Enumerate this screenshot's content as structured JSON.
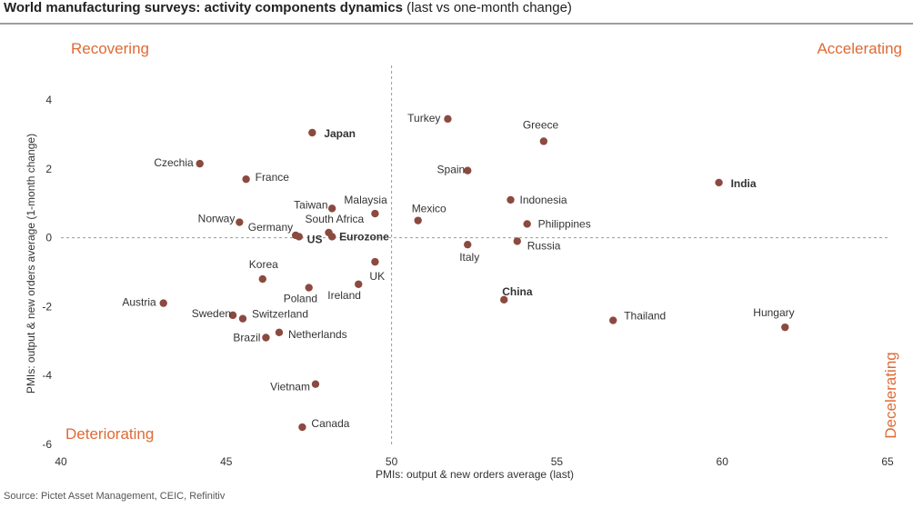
{
  "header": {
    "title_bold": "World manufacturing surveys: activity components dynamics",
    "title_rest": " (last vs one-month change)"
  },
  "footer": {
    "source": "Source: Pictet Asset Management, CEIC, Refinitiv"
  },
  "chart_data": {
    "type": "scatter",
    "title": "World manufacturing surveys: activity components dynamics (last vs one-month change)",
    "xlabel": "PMIs: output & new orders average (last)",
    "ylabel": "PMIs: output & new orders average (1-month change)",
    "xlim": [
      40,
      65
    ],
    "ylim": [
      -6,
      4.8
    ],
    "xticks": [
      "40",
      "45",
      "50",
      "55",
      "60",
      "65"
    ],
    "yticks": [
      "4",
      "2",
      "0",
      "-2",
      "-4",
      "-6"
    ],
    "reference_lines": {
      "x": 50,
      "y": 0
    },
    "colors": {
      "point": "#8b4a3f",
      "quadrant": "#e06a35"
    },
    "quadrants": {
      "top_left": "Recovering",
      "top_right": "Accelerating",
      "bottom_left": "Deteriorating",
      "bottom_right": "Decelerating"
    },
    "points": [
      {
        "label": "Turkey",
        "x": 51.7,
        "y": 3.45,
        "bold": false
      },
      {
        "label": "Japan",
        "x": 47.6,
        "y": 3.05,
        "bold": true
      },
      {
        "label": "Greece",
        "x": 54.6,
        "y": 2.8,
        "bold": false
      },
      {
        "label": "Czechia",
        "x": 44.2,
        "y": 2.15,
        "bold": false
      },
      {
        "label": "Spain",
        "x": 52.3,
        "y": 1.95,
        "bold": false
      },
      {
        "label": "France",
        "x": 45.6,
        "y": 1.7,
        "bold": false
      },
      {
        "label": "India",
        "x": 59.9,
        "y": 1.6,
        "bold": true
      },
      {
        "label": "Indonesia",
        "x": 53.6,
        "y": 1.1,
        "bold": false
      },
      {
        "label": "Taiwan",
        "x": 48.2,
        "y": 0.85,
        "bold": false
      },
      {
        "label": "Malaysia",
        "x": 49.5,
        "y": 0.7,
        "bold": false
      },
      {
        "label": "Mexico",
        "x": 50.8,
        "y": 0.5,
        "bold": false
      },
      {
        "label": "Norway",
        "x": 45.4,
        "y": 0.45,
        "bold": false
      },
      {
        "label": "Philippines",
        "x": 54.1,
        "y": 0.4,
        "bold": false
      },
      {
        "label": "South Africa",
        "x": 48.1,
        "y": 0.15,
        "bold": false
      },
      {
        "label": "Germany",
        "x": 47.1,
        "y": 0.07,
        "bold": false
      },
      {
        "label": "US",
        "x": 47.2,
        "y": 0.03,
        "bold": true
      },
      {
        "label": "Eurozone",
        "x": 48.2,
        "y": 0.03,
        "bold": true
      },
      {
        "label": "Russia",
        "x": 53.8,
        "y": -0.1,
        "bold": false
      },
      {
        "label": "Italy",
        "x": 52.3,
        "y": -0.2,
        "bold": false
      },
      {
        "label": "UK",
        "x": 49.5,
        "y": -0.7,
        "bold": false
      },
      {
        "label": "Korea",
        "x": 46.1,
        "y": -1.2,
        "bold": false
      },
      {
        "label": "Ireland",
        "x": 49.0,
        "y": -1.35,
        "bold": false
      },
      {
        "label": "Poland",
        "x": 47.5,
        "y": -1.45,
        "bold": false
      },
      {
        "label": "China",
        "x": 53.4,
        "y": -1.8,
        "bold": true
      },
      {
        "label": "Austria",
        "x": 43.1,
        "y": -1.9,
        "bold": false
      },
      {
        "label": "Sweden",
        "x": 45.2,
        "y": -2.25,
        "bold": false
      },
      {
        "label": "Switzerland",
        "x": 45.5,
        "y": -2.35,
        "bold": false
      },
      {
        "label": "Thailand",
        "x": 56.7,
        "y": -2.4,
        "bold": false
      },
      {
        "label": "Hungary",
        "x": 61.9,
        "y": -2.6,
        "bold": false
      },
      {
        "label": "Netherlands",
        "x": 46.6,
        "y": -2.75,
        "bold": false
      },
      {
        "label": "Brazil",
        "x": 46.2,
        "y": -2.9,
        "bold": false
      },
      {
        "label": "Vietnam",
        "x": 47.7,
        "y": -4.25,
        "bold": false
      },
      {
        "label": "Canada",
        "x": 47.3,
        "y": -5.5,
        "bold": false
      }
    ]
  }
}
